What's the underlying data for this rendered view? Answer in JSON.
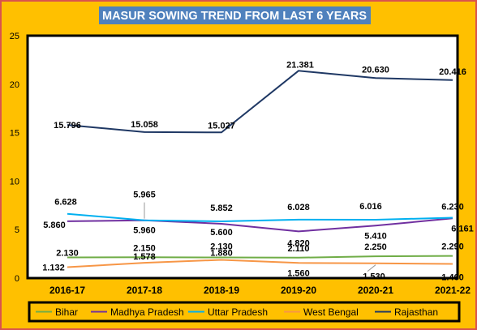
{
  "chart_data": {
    "type": "line",
    "title": "MASUR SOWING TREND FROM LAST 6 YEARS",
    "categories": [
      "2016-17",
      "2017-18",
      "2018-19",
      "2019-20",
      "2020-21",
      "2021-22"
    ],
    "ylim": [
      0,
      25
    ],
    "yticks": [
      0,
      5,
      10,
      15,
      20,
      25
    ],
    "grid": false,
    "legend_position": "bottom",
    "series": [
      {
        "name": "Bihar",
        "color": "#70ad47",
        "values": [
          2.13,
          2.15,
          2.13,
          2.11,
          2.25,
          2.29
        ],
        "labels": [
          "2.130",
          "2.150",
          "2.130",
          "2.110",
          "2.250",
          "2.290"
        ]
      },
      {
        "name": "Madhya Pradesh",
        "color": "#7030a0",
        "values": [
          5.86,
          5.96,
          5.6,
          4.82,
          5.41,
          6.161
        ],
        "labels": [
          "5.860",
          "5.960",
          "5.600",
          "4.820",
          "5.410",
          "6.161"
        ]
      },
      {
        "name": "Uttar Pradesh",
        "color": "#00b0f0",
        "values": [
          6.628,
          5.965,
          5.852,
          6.028,
          6.016,
          6.23
        ],
        "labels": [
          "6.628",
          "5.965",
          "5.852",
          "6.028",
          "6.016",
          "6.230"
        ]
      },
      {
        "name": "West Bengal",
        "color": "#f79646",
        "values": [
          1.132,
          1.578,
          1.88,
          1.56,
          1.53,
          1.46
        ],
        "labels": [
          "1.132",
          "1.578",
          "1.880",
          "1.560",
          "1.530",
          "1.460"
        ]
      },
      {
        "name": "Rajasthan",
        "color": "#1f3864",
        "values": [
          15.796,
          15.058,
          15.027,
          21.381,
          20.63,
          20.416
        ],
        "labels": [
          "15.796",
          "15.058",
          "15.027",
          "21.381",
          "20.630",
          "20.416"
        ]
      }
    ]
  }
}
